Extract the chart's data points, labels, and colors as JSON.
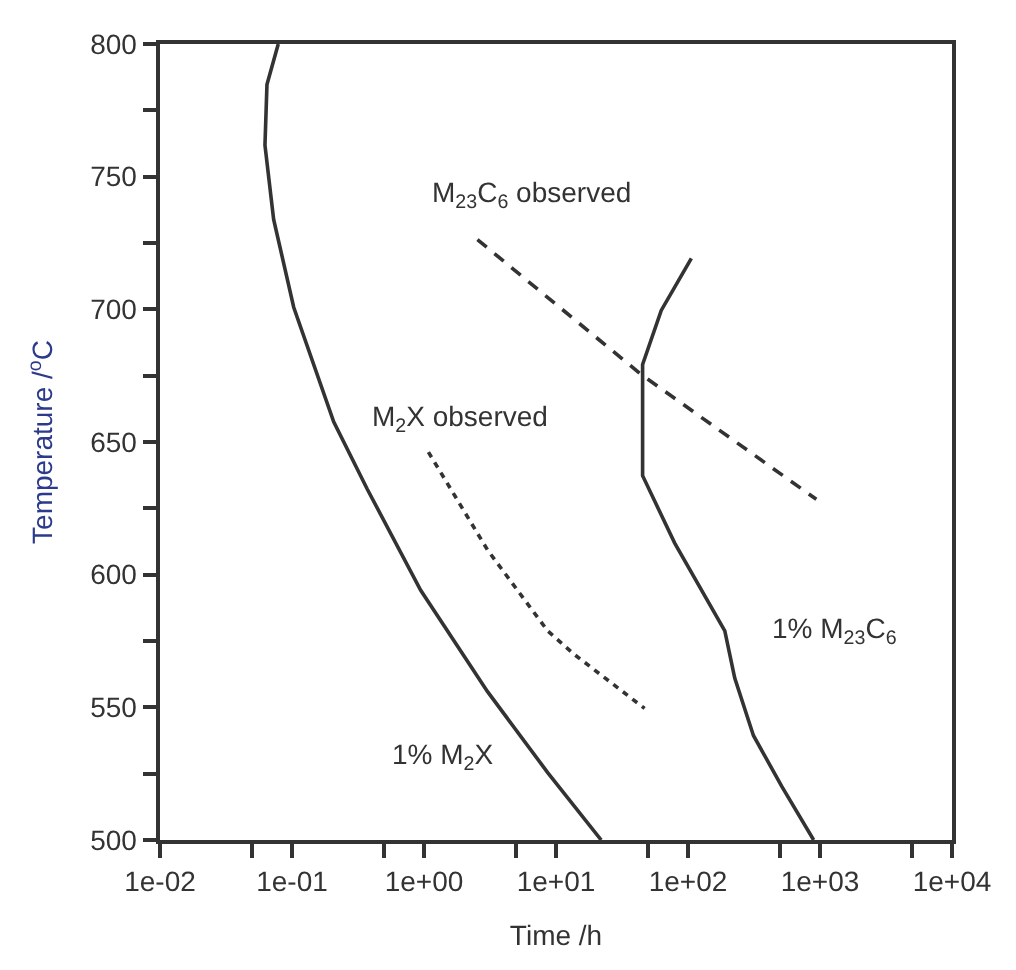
{
  "chart_data": {
    "type": "line",
    "xlabel": "Time /h",
    "ylabel": "Temperature /$^{o}$C",
    "log": "x",
    "xlim": [
      0.01,
      10000
    ],
    "xticks": [
      {
        "value": 0.01,
        "label": "1e-02"
      },
      {
        "value": 0.05,
        "label": null
      },
      {
        "value": 0.1,
        "label": "1e-01"
      },
      {
        "value": 0.5,
        "label": null
      },
      {
        "value": 1,
        "label": "1e+00"
      },
      {
        "value": 5,
        "label": null
      },
      {
        "value": 10,
        "label": "1e+01"
      },
      {
        "value": 50,
        "label": null
      },
      {
        "value": 100,
        "label": "1e+02"
      },
      {
        "value": 500,
        "label": null
      },
      {
        "value": 1000,
        "label": "1e+03"
      },
      {
        "value": 5000,
        "label": null
      },
      {
        "value": 10000,
        "label": "1e+04"
      }
    ],
    "ylim": [
      500,
      800
    ],
    "yticks": [
      500,
      {
        "value": 525,
        "label": null
      },
      550,
      {
        "value": 575,
        "label": null
      },
      600,
      {
        "value": 625,
        "label": null
      },
      650,
      {
        "value": 675,
        "label": null
      },
      700,
      {
        "value": 725,
        "label": null
      },
      750,
      {
        "value": 775,
        "label": null
      },
      800
    ],
    "series": [
      {
        "name": "1% M$_{2}$X",
        "color": "#333333",
        "line_style": "solid",
        "x": [
          0.0787,
          0.0646,
          0.0624,
          0.0726,
          0.103,
          0.207,
          0.372,
          0.944,
          3.03,
          8.65,
          22.0
        ],
        "values": [
          800,
          784.7,
          761.9,
          733.9,
          700.8,
          657.6,
          632.2,
          594.1,
          555.9,
          525.4,
          500
        ]
      },
      {
        "name": "1% M$_{23}$C$_{6}$",
        "color": "#333333",
        "line_style": "solid",
        "x": [
          106,
          62.7,
          45.3,
          45.3,
          79.3,
          190,
          226,
          313,
          512,
          895
        ],
        "values": [
          719.2,
          699.6,
          679.2,
          637.3,
          611.9,
          578.8,
          561.0,
          539.4,
          520.3,
          500
        ]
      },
      {
        "name": "M$_{23}$C$_{6}$ observed",
        "color": "#333333",
        "line_style": "dashed",
        "x": [
          2.54,
          44.3,
          938
        ],
        "values": [
          726.3,
          675.4,
          628.4
        ]
      },
      {
        "name": "M$_{2}$X observed",
        "color": "#333333",
        "line_style": "dotted",
        "x": [
          1.08,
          3.03,
          8.65,
          13.8,
          46.9
        ],
        "values": [
          646.2,
          609.3,
          578.8,
          569.9,
          549.6
        ]
      }
    ]
  }
}
